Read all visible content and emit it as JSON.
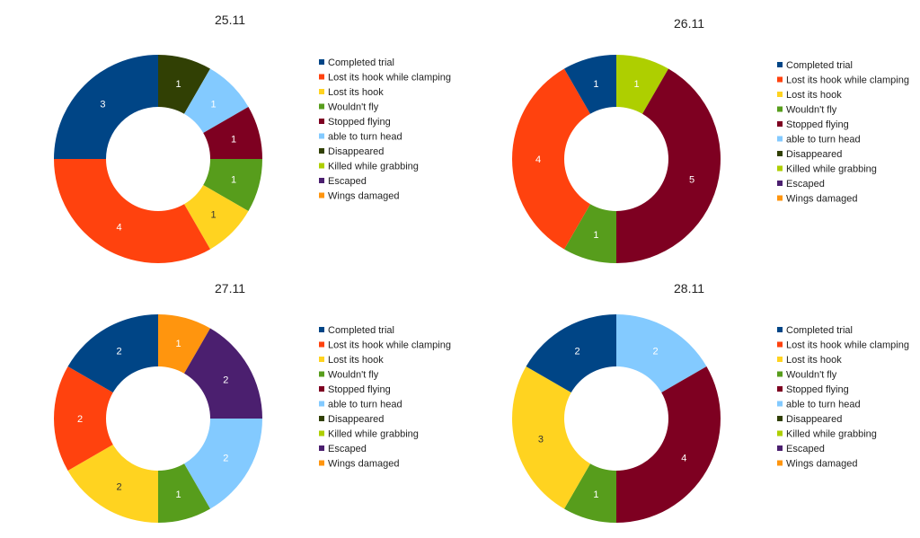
{
  "chart_data": [
    {
      "type": "donut",
      "title": "25.11",
      "categories": [
        "Completed trial",
        "Lost its hook while clamping",
        "Lost its hook",
        "Wouldn't fly",
        "Stopped flying",
        "able to turn head",
        "Disappeared",
        "Killed while grabbing",
        "Escaped",
        "Wings damaged"
      ],
      "legend_position": "right",
      "slices": [
        {
          "category": "Disappeared",
          "value": 1,
          "label": "1"
        },
        {
          "category": "able to turn head",
          "value": 1,
          "label": "1"
        },
        {
          "category": "Stopped flying",
          "value": 1,
          "label": "1"
        },
        {
          "category": "Wouldn't fly",
          "value": 1,
          "label": "1"
        },
        {
          "category": "Lost its hook",
          "value": 1,
          "label": "1"
        },
        {
          "category": "Lost its hook while clamping",
          "value": 4,
          "label": "4"
        },
        {
          "category": "Completed trial",
          "value": 3,
          "label": "3"
        }
      ]
    },
    {
      "type": "donut",
      "title": "26.11",
      "categories": [
        "Completed trial",
        "Lost its hook while clamping",
        "Lost its hook",
        "Wouldn't fly",
        "Stopped flying",
        "able to turn head",
        "Disappeared",
        "Killed while grabbing",
        "Escaped",
        "Wings damaged"
      ],
      "legend_position": "right",
      "slices": [
        {
          "category": "Killed while grabbing",
          "value": 1,
          "label": "1"
        },
        {
          "category": "Stopped flying",
          "value": 5,
          "label": "5"
        },
        {
          "category": "Wouldn't fly",
          "value": 1,
          "label": "1"
        },
        {
          "category": "Lost its hook while clamping",
          "value": 4,
          "label": "4"
        },
        {
          "category": "Completed trial",
          "value": 1,
          "label": "1"
        }
      ]
    },
    {
      "type": "donut",
      "title": "27.11",
      "categories": [
        "Completed trial",
        "Lost its hook while clamping",
        "Lost its hook",
        "Wouldn't fly",
        "Stopped flying",
        "able to turn head",
        "Disappeared",
        "Killed while grabbing",
        "Escaped",
        "Wings damaged"
      ],
      "legend_position": "right",
      "slices": [
        {
          "category": "Wings damaged",
          "value": 1,
          "label": "1"
        },
        {
          "category": "Escaped",
          "value": 2,
          "label": "2"
        },
        {
          "category": "able to turn head",
          "value": 2,
          "label": "2"
        },
        {
          "category": "Wouldn't fly",
          "value": 1,
          "label": "1"
        },
        {
          "category": "Lost its hook",
          "value": 2,
          "label": "2"
        },
        {
          "category": "Lost its hook while clamping",
          "value": 2,
          "label": "2"
        },
        {
          "category": "Completed trial",
          "value": 2,
          "label": "2"
        }
      ]
    },
    {
      "type": "donut",
      "title": "28.11",
      "categories": [
        "Completed trial",
        "Lost its hook while clamping",
        "Lost its hook",
        "Wouldn't fly",
        "Stopped flying",
        "able to turn head",
        "Disappeared",
        "Killed while grabbing",
        "Escaped",
        "Wings damaged"
      ],
      "legend_position": "right",
      "slices": [
        {
          "category": "able to turn head",
          "value": 2,
          "label": "2"
        },
        {
          "category": "Stopped flying",
          "value": 4,
          "label": "4"
        },
        {
          "category": "Wouldn't fly",
          "value": 1,
          "label": "1"
        },
        {
          "category": "Lost its hook",
          "value": 3,
          "label": "3"
        },
        {
          "category": "Completed trial",
          "value": 2,
          "label": "2"
        }
      ]
    }
  ],
  "category_colors": {
    "Completed trial": "#004586",
    "Lost its hook while clamping": "#ff420e",
    "Lost its hook": "#ffd320",
    "Wouldn't fly": "#579d1c",
    "Stopped flying": "#7e0021",
    "able to turn head": "#83caff",
    "Disappeared": "#314004",
    "Killed while grabbing": "#aecf00",
    "Escaped": "#4b1f6f",
    "Wings damaged": "#ff950e"
  }
}
